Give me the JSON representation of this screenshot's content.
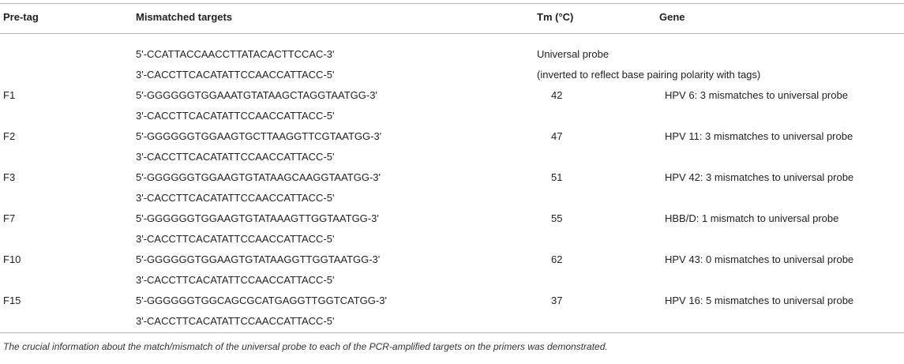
{
  "headers": {
    "pretag": "Pre-tag",
    "targets": "Mismatched targets",
    "tm": "Tm (°C)",
    "gene": "Gene"
  },
  "universal": {
    "seq1": "5'-CCATTACCAACCTTATACACTTCCAC-3'",
    "seq2": "3'-CACCTTCACATATTCCAACCATTACC-5'",
    "note1": "Universal probe",
    "note2": "(inverted to reflect base pairing polarity with tags)"
  },
  "rows": [
    {
      "pretag": "F1",
      "seq1": "5'-GGGGGGTGGAAATGTATAAGCTAGGTAATGG-3'",
      "seq2": "3'-CACCTTCACATATTCCAACCATTACC-5'",
      "tm": "42",
      "gene": "HPV 6: 3 mismatches to universal probe"
    },
    {
      "pretag": "F2",
      "seq1": "5'-GGGGGGTGGAAGTGCTTAAGGTTCGTAATGG-3'",
      "seq2": "3'-CACCTTCACATATTCCAACCATTACC-5'",
      "tm": "47",
      "gene": "HPV 11: 3 mismatches to universal probe"
    },
    {
      "pretag": "F3",
      "seq1": "5'-GGGGGGTGGAAGTGTATAAGCAAGGTAATGG-3'",
      "seq2": "3'-CACCTTCACATATTCCAACCATTACC-5'",
      "tm": "51",
      "gene": "HPV 42: 3 mismatches to universal probe"
    },
    {
      "pretag": "F7",
      "seq1": "5'-GGGGGGTGGAAGTGTATAAAGTTGGTAATGG-3'",
      "seq2": "3'-CACCTTCACATATTCCAACCATTACC-5'",
      "tm": "55",
      "gene": "HBB/D: 1 mismatch to universal probe"
    },
    {
      "pretag": "F10",
      "seq1": "5'-GGGGGGTGGAAGTGTATAAGGTTGGTAATGG-3'",
      "seq2": "3'-CACCTTCACATATTCCAACCATTACC-5'",
      "tm": "62",
      "gene": "HPV 43: 0 mismatches to universal probe"
    },
    {
      "pretag": "F15",
      "seq1": "5'-GGGGGGTGGCAGCGCATGAGGTTGGTCATGG-3'",
      "seq2": "3'-CACCTTCACATATTCCAACCATTACC-5'",
      "tm": "37",
      "gene": "HPV 16: 5 mismatches to universal probe"
    }
  ],
  "footnote": "The crucial information about the match/mismatch of the universal probe to each of the PCR-amplified targets on the primers was demonstrated."
}
